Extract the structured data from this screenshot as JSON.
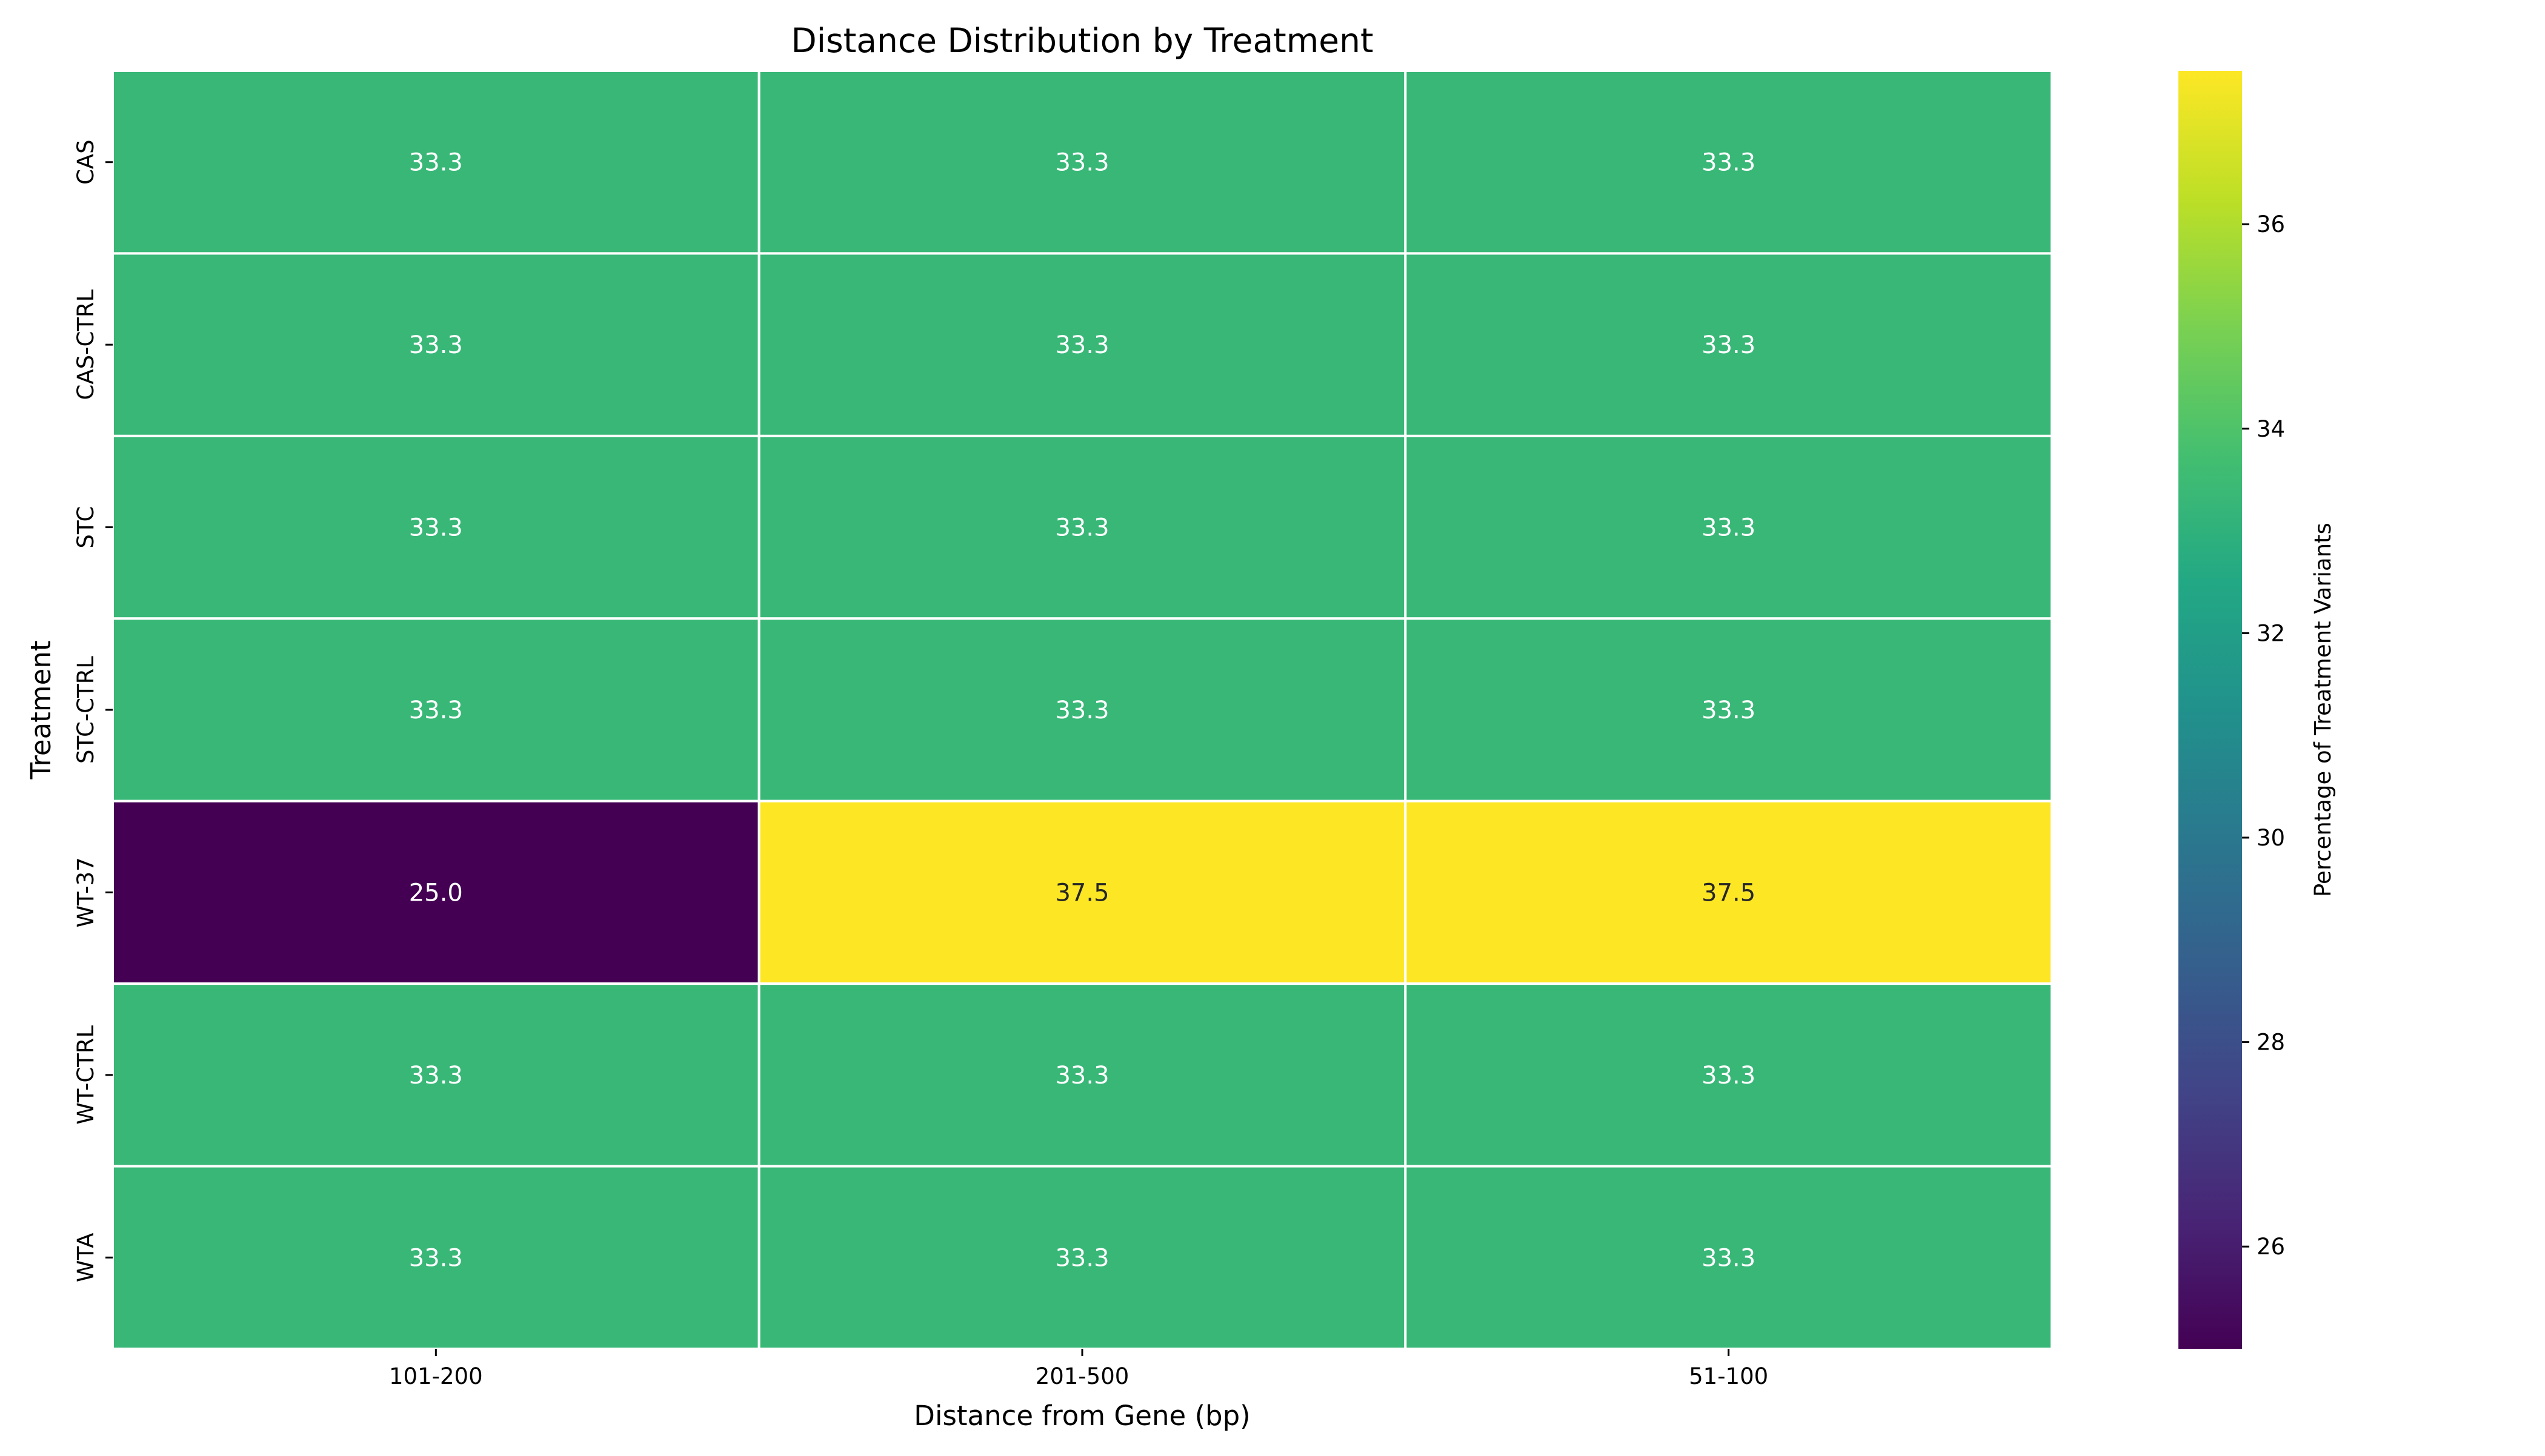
{
  "chart_data": {
    "type": "heatmap",
    "title": "Distance Distribution by Treatment",
    "xlabel": "Distance from Gene (bp)",
    "ylabel": "Treatment",
    "x_categories": [
      "101-200",
      "201-500",
      "51-100"
    ],
    "y_categories": [
      "CAS",
      "CAS-CTRL",
      "STC",
      "STC-CTRL",
      "WT-37",
      "WT-CTRL",
      "WTA"
    ],
    "values": [
      [
        33.3,
        33.3,
        33.3
      ],
      [
        33.3,
        33.3,
        33.3
      ],
      [
        33.3,
        33.3,
        33.3
      ],
      [
        33.3,
        33.3,
        33.3
      ],
      [
        25.0,
        37.5,
        37.5
      ],
      [
        33.3,
        33.3,
        33.3
      ],
      [
        33.3,
        33.3,
        33.3
      ]
    ],
    "value_format": "0.0",
    "colormap": "viridis",
    "colorbar": {
      "label": "Percentage of Treatment Variants",
      "range": [
        25.0,
        37.5
      ],
      "ticks": [
        26,
        28,
        30,
        32,
        34,
        36
      ]
    },
    "cell_border_color": "#ffffff",
    "legend_placement": "right"
  }
}
